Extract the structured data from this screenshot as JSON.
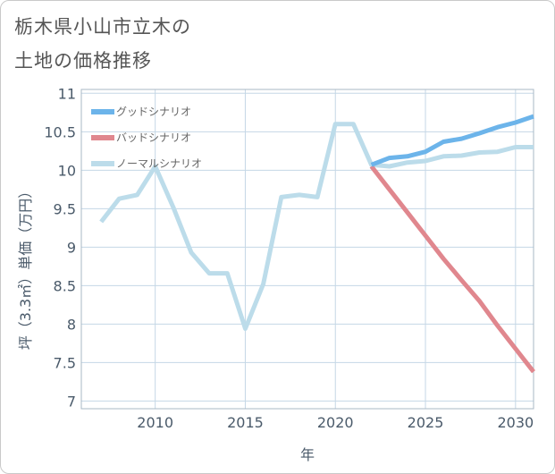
{
  "title_line1": "栃木県小山市立木の",
  "title_line2": "土地の価格推移",
  "chart_data": {
    "type": "line",
    "title": "栃木県小山市立木の土地の価格推移",
    "xlabel": "年",
    "ylabel": "坪（3.3㎡）単価（万円）",
    "xlim": [
      2005.9,
      2031.0
    ],
    "ylim": [
      6.9,
      11.05
    ],
    "x_ticks": [
      2010,
      2015,
      2020,
      2025,
      2030
    ],
    "y_ticks": [
      7,
      7.5,
      8,
      8.5,
      9,
      9.5,
      10,
      10.5,
      11
    ],
    "grid": true,
    "legend_position": "top-left",
    "series": [
      {
        "name": "グッドシナリオ",
        "color": "#6cb4ea",
        "x": [
          2022,
          2023,
          2024,
          2025,
          2026,
          2027,
          2028,
          2029,
          2030,
          2031
        ],
        "y": [
          10.07,
          10.16,
          10.18,
          10.24,
          10.37,
          10.41,
          10.48,
          10.56,
          10.62,
          10.7
        ]
      },
      {
        "name": "バッドシナリオ",
        "color": "#e0878e",
        "x": [
          2022,
          2023,
          2024,
          2025,
          2026,
          2027,
          2028,
          2029,
          2030,
          2031
        ],
        "y": [
          10.05,
          9.75,
          9.45,
          9.15,
          8.85,
          8.57,
          8.3,
          7.98,
          7.68,
          7.38
        ]
      },
      {
        "name": "ノーマルシナリオ",
        "color": "#bcdcea",
        "x": [
          2007,
          2008,
          2009,
          2010,
          2011,
          2012,
          2013,
          2014,
          2015,
          2016,
          2017,
          2018,
          2019,
          2020,
          2021,
          2022,
          2023,
          2024,
          2025,
          2026,
          2027,
          2028,
          2029,
          2030,
          2031
        ],
        "y": [
          9.33,
          9.63,
          9.68,
          10.05,
          9.52,
          8.93,
          8.66,
          8.66,
          7.94,
          8.52,
          9.65,
          9.68,
          9.65,
          10.6,
          10.6,
          10.07,
          10.05,
          10.1,
          10.12,
          10.18,
          10.19,
          10.23,
          10.24,
          10.3,
          10.3
        ]
      }
    ]
  }
}
